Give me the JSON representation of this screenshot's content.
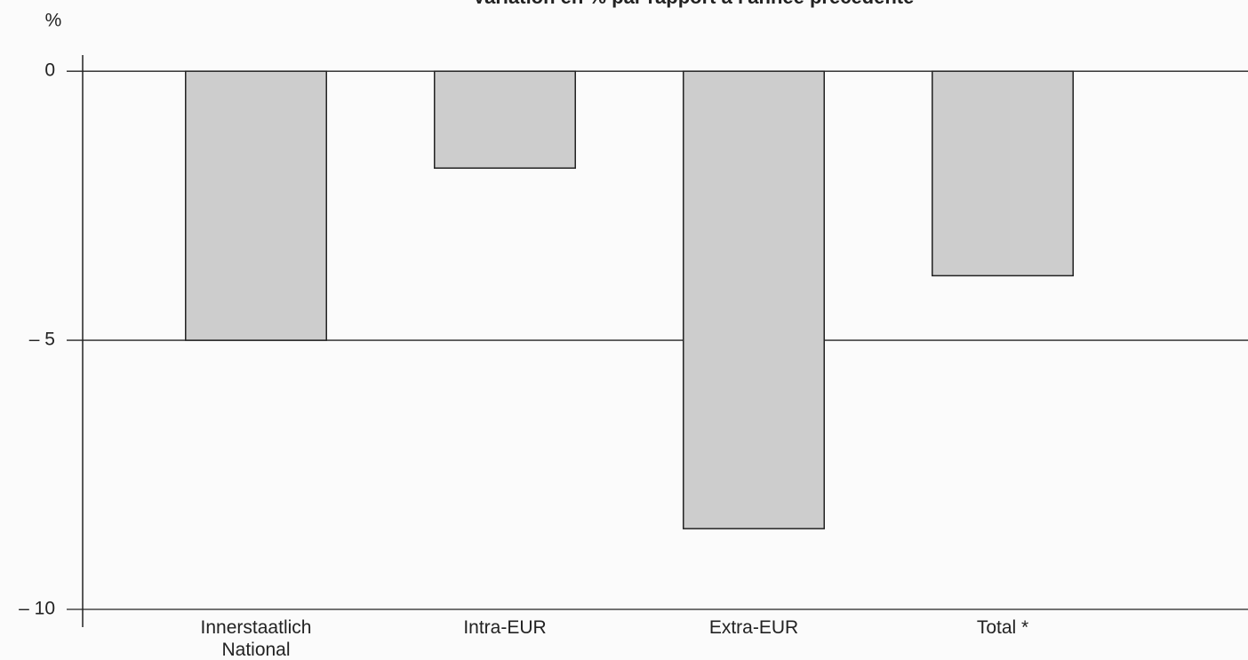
{
  "chart_data": {
    "type": "bar",
    "title": "Variation en % par rapport à l'année précédente",
    "y_label": "%",
    "categories": [
      "Innerstaatlich\nNational",
      "Intra-EUR",
      "Extra-EUR",
      "Total *"
    ],
    "values": [
      -5.0,
      -1.8,
      -8.5,
      -3.8
    ],
    "color": "#cdcdcd",
    "ylim": [
      -10,
      0.3
    ],
    "yticks": [
      0,
      {
        "value": -5,
        "label": "– 5"
      },
      {
        "value": -10,
        "label": "– 10"
      }
    ],
    "grid": true
  }
}
